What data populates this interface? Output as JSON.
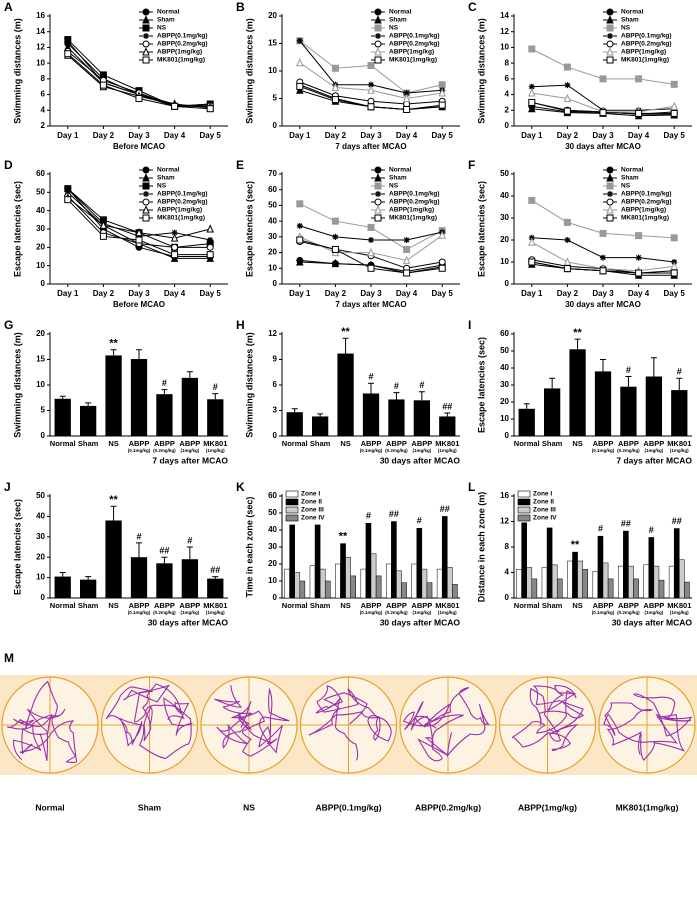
{
  "chart_data": [
    {
      "panel": "A",
      "type": "line",
      "ylabel": "Swimming distances (m)",
      "xlabel": "Before MCAO",
      "categories": [
        "Day 1",
        "Day 2",
        "Day 3",
        "Day 4",
        "Day 5"
      ],
      "ylim": [
        2,
        16
      ],
      "yticks": [
        2,
        4,
        6,
        8,
        10,
        12,
        14,
        16
      ],
      "series": [
        {
          "name": "Normal",
          "marker": "circle",
          "color": "#000000",
          "values": [
            12.5,
            8,
            6,
            4.5,
            4.5
          ]
        },
        {
          "name": "Sham",
          "marker": "triangle",
          "color": "#000000",
          "values": [
            12,
            7.5,
            6,
            4.8,
            4.3
          ]
        },
        {
          "name": "NS",
          "marker": "square",
          "color": "#000000",
          "values": [
            13,
            8.5,
            6.5,
            4.5,
            4.8
          ]
        },
        {
          "name": "ABPP(0.1mg/kg)",
          "marker": "star",
          "color": "#000000",
          "values": [
            12.8,
            7.5,
            6,
            4.5,
            4.8
          ]
        },
        {
          "name": "ABPP(0.2mg/kg)",
          "marker": "circle-open",
          "color": "#000000",
          "values": [
            11.5,
            7.8,
            6.2,
            4.6,
            4.6
          ]
        },
        {
          "name": "ABPP(1mg/kg)",
          "marker": "triangle-open",
          "color": "#000000",
          "values": [
            11,
            7,
            5.8,
            4.7,
            4.5
          ]
        },
        {
          "name": "MK801(1mg/kg)",
          "marker": "square-open",
          "color": "#000000",
          "values": [
            11.2,
            7.2,
            5.5,
            4.5,
            4.2
          ]
        }
      ]
    },
    {
      "panel": "B",
      "type": "line",
      "ylabel": "Swimming distances (m)",
      "xlabel": "7 days after MCAO",
      "categories": [
        "Day 1",
        "Day 2",
        "Day 3",
        "Day 4",
        "Day 5"
      ],
      "ylim": [
        0,
        20
      ],
      "yticks": [
        0,
        5,
        10,
        15,
        20
      ],
      "series": [
        {
          "name": "Normal",
          "marker": "circle",
          "color": "#000000",
          "values": [
            7.5,
            5,
            3.5,
            3,
            3.5
          ]
        },
        {
          "name": "Sham",
          "marker": "triangle",
          "color": "#000000",
          "values": [
            6.5,
            4.5,
            3.5,
            3,
            3.5
          ]
        },
        {
          "name": "NS",
          "marker": "square",
          "color": "#999999",
          "values": [
            15.5,
            10.5,
            11,
            6,
            7.5
          ]
        },
        {
          "name": "ABPP(0.1mg/kg)",
          "marker": "star",
          "color": "#000000",
          "values": [
            15.5,
            7.5,
            7.5,
            6,
            6.5
          ]
        },
        {
          "name": "ABPP(0.2mg/kg)",
          "marker": "circle-open",
          "color": "#000000",
          "values": [
            8,
            5.5,
            4.5,
            4,
            4.5
          ]
        },
        {
          "name": "ABPP(1mg/kg)",
          "marker": "triangle-open",
          "color": "#999999",
          "values": [
            11.5,
            7,
            6.5,
            5,
            6
          ]
        },
        {
          "name": "MK801(1mg/kg)",
          "marker": "square-open",
          "color": "#000000",
          "values": [
            7.2,
            4.8,
            3.5,
            3,
            3.8
          ]
        }
      ]
    },
    {
      "panel": "C",
      "type": "line",
      "ylabel": "Swimming distances (m)",
      "xlabel": "30 days after MCAO",
      "categories": [
        "Day 1",
        "Day 2",
        "Day 3",
        "Day 4",
        "Day 5"
      ],
      "ylim": [
        0,
        14
      ],
      "yticks": [
        0,
        2,
        4,
        6,
        8,
        10,
        12,
        14
      ],
      "series": [
        {
          "name": "Normal",
          "marker": "circle",
          "color": "#000000",
          "values": [
            2.5,
            1.8,
            1.8,
            1.5,
            1.5
          ]
        },
        {
          "name": "Sham",
          "marker": "triangle",
          "color": "#000000",
          "values": [
            2.2,
            1.7,
            1.6,
            1.3,
            1.4
          ]
        },
        {
          "name": "NS",
          "marker": "square",
          "color": "#999999",
          "values": [
            9.8,
            7.5,
            6,
            6,
            5.3
          ]
        },
        {
          "name": "ABPP(0.1mg/kg)",
          "marker": "star",
          "color": "#000000",
          "values": [
            5,
            5.2,
            2,
            2,
            2.2
          ]
        },
        {
          "name": "ABPP(0.2mg/kg)",
          "marker": "circle-open",
          "color": "#000000",
          "values": [
            3,
            2,
            1.8,
            1.5,
            1.8
          ]
        },
        {
          "name": "ABPP(1mg/kg)",
          "marker": "triangle-open",
          "color": "#999999",
          "values": [
            4.2,
            3.5,
            1.8,
            1.8,
            2.5
          ]
        },
        {
          "name": "MK801(1mg/kg)",
          "marker": "square-open",
          "color": "#000000",
          "values": [
            3,
            1.9,
            1.7,
            1.6,
            1.6
          ]
        }
      ]
    },
    {
      "panel": "D",
      "type": "line",
      "ylabel": "Escape latencies (sec)",
      "xlabel": "Before MCAO",
      "categories": [
        "Day 1",
        "Day 2",
        "Day 3",
        "Day 4",
        "Day 5"
      ],
      "ylim": [
        0,
        60
      ],
      "yticks": [
        0,
        10,
        20,
        30,
        40,
        50,
        60
      ],
      "series": [
        {
          "name": "Normal",
          "marker": "circle",
          "color": "#000000",
          "values": [
            52,
            30,
            20,
            15,
            15
          ]
        },
        {
          "name": "Sham",
          "marker": "triangle",
          "color": "#000000",
          "values": [
            50,
            32,
            22,
            14,
            14
          ]
        },
        {
          "name": "NS",
          "marker": "square",
          "color": "#000000",
          "values": [
            52,
            35,
            28,
            20,
            22
          ]
        },
        {
          "name": "ABPP(0.1mg/kg)",
          "marker": "star",
          "color": "#000000",
          "values": [
            52,
            33,
            26,
            28,
            24
          ]
        },
        {
          "name": "ABPP(0.2mg/kg)",
          "marker": "circle-open",
          "color": "#000000",
          "values": [
            48,
            28,
            22,
            20,
            20
          ]
        },
        {
          "name": "ABPP(1mg/kg)",
          "marker": "triangle-open",
          "color": "#000000",
          "values": [
            47,
            32,
            28,
            25,
            30
          ]
        },
        {
          "name": "MK801(1mg/kg)",
          "marker": "square-open",
          "color": "#000000",
          "values": [
            46,
            26,
            24,
            16,
            16
          ]
        }
      ]
    },
    {
      "panel": "E",
      "type": "line",
      "ylabel": "Escape latencies (sec)",
      "xlabel": "7 days after MCAO",
      "categories": [
        "Day 1",
        "Day 2",
        "Day 3",
        "Day 4",
        "Day 5"
      ],
      "ylim": [
        0,
        70
      ],
      "yticks": [
        0,
        10,
        20,
        30,
        40,
        50,
        60,
        70
      ],
      "series": [
        {
          "name": "Normal",
          "marker": "circle",
          "color": "#000000",
          "values": [
            15,
            13,
            12,
            8,
            12
          ]
        },
        {
          "name": "Sham",
          "marker": "triangle",
          "color": "#000000",
          "values": [
            14,
            13,
            12,
            7,
            11
          ]
        },
        {
          "name": "NS",
          "marker": "square",
          "color": "#999999",
          "values": [
            51,
            40,
            36,
            22,
            34
          ]
        },
        {
          "name": "ABPP(0.1mg/kg)",
          "marker": "star",
          "color": "#000000",
          "values": [
            37,
            30,
            28,
            28,
            33
          ]
        },
        {
          "name": "ABPP(0.2mg/kg)",
          "marker": "circle-open",
          "color": "#000000",
          "values": [
            27,
            22,
            18,
            10,
            14
          ]
        },
        {
          "name": "ABPP(1mg/kg)",
          "marker": "triangle-open",
          "color": "#999999",
          "values": [
            30,
            20,
            20,
            15,
            31
          ]
        },
        {
          "name": "MK801(1mg/kg)",
          "marker": "square-open",
          "color": "#000000",
          "values": [
            28,
            22,
            10,
            7,
            10
          ]
        }
      ]
    },
    {
      "panel": "F",
      "type": "line",
      "ylabel": "Escape latencies (sec)",
      "xlabel": "30 days after MCAO",
      "categories": [
        "Day 1",
        "Day 2",
        "Day 3",
        "Day 4",
        "Day 5"
      ],
      "ylim": [
        0,
        50
      ],
      "yticks": [
        0,
        10,
        20,
        30,
        40,
        50
      ],
      "series": [
        {
          "name": "Normal",
          "marker": "circle",
          "color": "#000000",
          "values": [
            10,
            7,
            6,
            5,
            5
          ]
        },
        {
          "name": "Sham",
          "marker": "triangle",
          "color": "#000000",
          "values": [
            9,
            7,
            6,
            4,
            4
          ]
        },
        {
          "name": "NS",
          "marker": "square",
          "color": "#999999",
          "values": [
            38,
            28,
            23,
            22,
            21
          ]
        },
        {
          "name": "ABPP(0.1mg/kg)",
          "marker": "star",
          "color": "#000000",
          "values": [
            21,
            20,
            12,
            12,
            10
          ]
        },
        {
          "name": "ABPP(0.2mg/kg)",
          "marker": "circle-open",
          "color": "#000000",
          "values": [
            11,
            8,
            7,
            5,
            6
          ]
        },
        {
          "name": "ABPP(1mg/kg)",
          "marker": "triangle-open",
          "color": "#999999",
          "values": [
            19,
            10,
            7,
            6,
            8
          ]
        },
        {
          "name": "MK801(1mg/kg)",
          "marker": "square-open",
          "color": "#000000",
          "values": [
            10,
            7,
            6,
            5,
            5
          ]
        }
      ]
    },
    {
      "panel": "G",
      "type": "bar",
      "ylabel": "Swimming distances (m)",
      "xlabel": "7 days after MCAO",
      "color": "#000000",
      "categories": [
        "Normal",
        "Sham",
        "NS",
        "ABPP",
        "ABPP",
        "ABPP",
        "MK801"
      ],
      "category_notes": [
        null,
        null,
        null,
        "(0.1mg/kg)",
        "(0.2mg/kg)",
        "(1mg/kg)",
        "(1mg/kg)"
      ],
      "values": [
        7.3,
        5.9,
        15.8,
        15.1,
        8.2,
        11.4,
        7.2
      ],
      "errors": [
        0.5,
        0.6,
        1.1,
        1.8,
        0.9,
        1.2,
        1.1
      ],
      "annotations": [
        null,
        null,
        "**",
        null,
        "#",
        null,
        "#"
      ],
      "ylim": [
        0,
        20
      ],
      "yticks": [
        0,
        5,
        10,
        15,
        20
      ]
    },
    {
      "panel": "H",
      "type": "bar",
      "ylabel": "Swimming distances (m)",
      "xlabel": "30 days after MCAO",
      "color": "#000000",
      "categories": [
        "Normal",
        "Sham",
        "NS",
        "ABPP",
        "ABPP",
        "ABPP",
        "MK801"
      ],
      "category_notes": [
        null,
        null,
        null,
        "(0.1mg/kg)",
        "(0.2mg/kg)",
        "(1mg/kg)",
        "(1mg/kg)"
      ],
      "values": [
        2.8,
        2.3,
        9.7,
        5.0,
        4.3,
        4.2,
        2.3
      ],
      "errors": [
        0.4,
        0.3,
        1.8,
        1.2,
        0.8,
        1.0,
        0.4
      ],
      "annotations": [
        null,
        null,
        "**",
        "#",
        "#",
        "#",
        "##"
      ],
      "ylim": [
        0,
        12
      ],
      "yticks": [
        0,
        3,
        6,
        9,
        12
      ]
    },
    {
      "panel": "I",
      "type": "bar",
      "ylabel": "Escape latencies (sec)",
      "xlabel": "7 days after MCAO",
      "color": "#000000",
      "categories": [
        "Normal",
        "Sham",
        "NS",
        "ABPP",
        "ABPP",
        "ABPP",
        "MK801"
      ],
      "category_notes": [
        null,
        null,
        null,
        "(0.1mg/kg)",
        "(0.2mg/kg)",
        "(1mg/kg)",
        "(1mg/kg)"
      ],
      "values": [
        16,
        28,
        51,
        38,
        29,
        35,
        27
      ],
      "errors": [
        3,
        6,
        6,
        7,
        6,
        11,
        7
      ],
      "annotations": [
        null,
        null,
        "**",
        null,
        "#",
        null,
        "#"
      ],
      "ylim": [
        0,
        60
      ],
      "yticks": [
        0,
        10,
        20,
        30,
        40,
        50,
        60
      ]
    },
    {
      "panel": "J",
      "type": "bar",
      "ylabel": "Escape latencies (sec)",
      "xlabel": "30 days after MCAO",
      "color": "#000000",
      "categories": [
        "Normal",
        "Sham",
        "NS",
        "ABPP",
        "ABPP",
        "ABPP",
        "MK801"
      ],
      "category_notes": [
        null,
        null,
        null,
        "(0.1mg/kg)",
        "(0.2mg/kg)",
        "(1mg/kg)",
        "(1mg/kg)"
      ],
      "values": [
        10.5,
        9,
        38,
        20,
        17,
        19,
        9.5
      ],
      "errors": [
        2,
        1.5,
        7,
        7,
        3,
        6,
        1
      ],
      "annotations": [
        null,
        null,
        "**",
        "#",
        "##",
        "#",
        "##"
      ],
      "ylim": [
        0,
        50
      ],
      "yticks": [
        0,
        10,
        20,
        30,
        40,
        50
      ]
    },
    {
      "panel": "K",
      "type": "grouped-bar",
      "ylabel": "Time in each zone (sec)",
      "xlabel": "30 days after MCAO",
      "categories": [
        "Normal",
        "Sham",
        "NS",
        "ABPP",
        "ABPP",
        "ABPP",
        "MK801"
      ],
      "category_notes": [
        null,
        null,
        null,
        "(0.1mg/kg)",
        "(0.2mg/kg)",
        "(1mg/kg)",
        "(1mg/kg)"
      ],
      "ylim": [
        0,
        60
      ],
      "yticks": [
        0,
        10,
        20,
        30,
        40,
        50,
        60
      ],
      "series": [
        {
          "name": "Zone I",
          "color": "#ffffff",
          "values": [
            17,
            19,
            20,
            17,
            20,
            20,
            17
          ]
        },
        {
          "name": "Zone II",
          "color": "#000000",
          "values": [
            43,
            43,
            32,
            44,
            45,
            41,
            48
          ],
          "annotations": [
            null,
            null,
            "**",
            "#",
            "##",
            "#",
            "##"
          ]
        },
        {
          "name": "Zone III",
          "color": "#cccccc",
          "values": [
            15,
            17,
            24,
            26,
            16,
            17,
            18
          ]
        },
        {
          "name": "Zone IV",
          "color": "#888888",
          "values": [
            10,
            10,
            13,
            13,
            9,
            9,
            8
          ]
        }
      ]
    },
    {
      "panel": "L",
      "type": "grouped-bar",
      "ylabel": "Distance in each zone (m)",
      "xlabel": "30 days after MCAO",
      "categories": [
        "Normal",
        "Sham",
        "NS",
        "ABPP",
        "ABPP",
        "ABPP",
        "MK801"
      ],
      "category_notes": [
        null,
        null,
        null,
        "(0.1mg/kg)",
        "(0.2mg/kg)",
        "(1mg/kg)",
        "(1mg/kg)"
      ],
      "ylim": [
        0,
        16
      ],
      "yticks": [
        0,
        4,
        8,
        12,
        16
      ],
      "series": [
        {
          "name": "Zone I",
          "color": "#ffffff",
          "values": [
            4.5,
            4.8,
            5.8,
            4.2,
            5.0,
            5.2,
            5.0
          ]
        },
        {
          "name": "Zone II",
          "color": "#000000",
          "values": [
            11.8,
            11.0,
            7.2,
            9.7,
            10.5,
            9.5,
            10.9
          ],
          "annotations": [
            null,
            null,
            "**",
            "#",
            "##",
            "#",
            "##"
          ]
        },
        {
          "name": "Zone III",
          "color": "#cccccc",
          "values": [
            4.8,
            5.2,
            5.8,
            5.5,
            5.0,
            5.0,
            6.0
          ]
        },
        {
          "name": "Zone IV",
          "color": "#888888",
          "values": [
            3.0,
            3.0,
            4.5,
            3.0,
            3.0,
            2.8,
            2.5
          ]
        }
      ]
    }
  ],
  "tracks": {
    "panel": "M",
    "labels": [
      "Normal",
      "Sham",
      "NS",
      "ABPP(0.1mg/kg)",
      "ABPP(0.2mg/kg)",
      "ABPP(1mg/kg)",
      "MK801(1mg/kg)"
    ]
  }
}
